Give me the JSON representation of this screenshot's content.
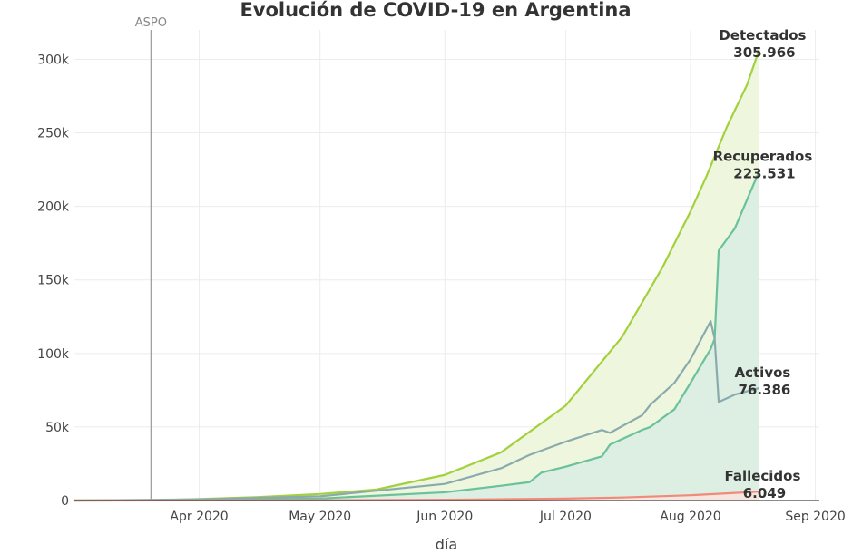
{
  "chart_data": {
    "type": "area",
    "title": "Evolución de COVID-19 en Argentina",
    "xlabel": "día",
    "ylabel": "",
    "x_domain": [
      "2020-03-01",
      "2020-09-02"
    ],
    "ylim": [
      0,
      320000
    ],
    "x_ticks": [
      {
        "date": "2020-04-01",
        "label": "Apr 2020"
      },
      {
        "date": "2020-05-01",
        "label": "May 2020"
      },
      {
        "date": "2020-06-01",
        "label": "Jun 2020"
      },
      {
        "date": "2020-07-01",
        "label": "Jul 2020"
      },
      {
        "date": "2020-08-01",
        "label": "Aug 2020"
      },
      {
        "date": "2020-09-01",
        "label": "Sep 2020"
      }
    ],
    "y_ticks": [
      {
        "value": 0,
        "label": "0"
      },
      {
        "value": 50000,
        "label": "50k"
      },
      {
        "value": 100000,
        "label": "100k"
      },
      {
        "value": 150000,
        "label": "150k"
      },
      {
        "value": 200000,
        "label": "200k"
      },
      {
        "value": 250000,
        "label": "250k"
      },
      {
        "value": 300000,
        "label": "300k"
      }
    ],
    "grid": true,
    "vertical_line": {
      "date": "2020-03-20",
      "label": "ASPO"
    },
    "series": [
      {
        "name": "Detectados",
        "end_label": "305.966",
        "color": "#a3d13e",
        "fill": "#eef6dd",
        "points": [
          [
            "2020-03-01",
            0
          ],
          [
            "2020-03-20",
            128
          ],
          [
            "2020-04-01",
            1054
          ],
          [
            "2020-04-15",
            2272
          ],
          [
            "2020-05-01",
            4428
          ],
          [
            "2020-05-15",
            7479
          ],
          [
            "2020-06-01",
            17415
          ],
          [
            "2020-06-15",
            32785
          ],
          [
            "2020-07-01",
            64530
          ],
          [
            "2020-07-15",
            111160
          ],
          [
            "2020-07-25",
            158334
          ],
          [
            "2020-08-01",
            196543
          ],
          [
            "2020-08-05",
            220682
          ],
          [
            "2020-08-10",
            253868
          ],
          [
            "2020-08-15",
            282437
          ],
          [
            "2020-08-18",
            305966
          ]
        ]
      },
      {
        "name": "Recuperados",
        "end_label": "223.531",
        "color": "#6ac19a",
        "fill": "#dcefe2",
        "points": [
          [
            "2020-03-01",
            0
          ],
          [
            "2020-04-01",
            240
          ],
          [
            "2020-05-01",
            1356
          ],
          [
            "2020-06-01",
            5598
          ],
          [
            "2020-06-15",
            10052
          ],
          [
            "2020-06-22",
            12500
          ],
          [
            "2020-06-25",
            19000
          ],
          [
            "2020-07-01",
            23000
          ],
          [
            "2020-07-10",
            30000
          ],
          [
            "2020-07-12",
            38000
          ],
          [
            "2020-07-20",
            48000
          ],
          [
            "2020-07-22",
            50000
          ],
          [
            "2020-07-28",
            62000
          ],
          [
            "2020-08-01",
            80000
          ],
          [
            "2020-08-06",
            103000
          ],
          [
            "2020-08-07",
            110000
          ],
          [
            "2020-08-08",
            170000
          ],
          [
            "2020-08-12",
            185000
          ],
          [
            "2020-08-18",
            223531
          ]
        ]
      },
      {
        "name": "Activos",
        "end_label": "76.386",
        "color": "#8aabae",
        "fill": "none",
        "points": [
          [
            "2020-03-01",
            0
          ],
          [
            "2020-04-01",
            770
          ],
          [
            "2020-05-01",
            2855
          ],
          [
            "2020-06-01",
            11281
          ],
          [
            "2020-06-15",
            22000
          ],
          [
            "2020-06-22",
            31000
          ],
          [
            "2020-06-25",
            34000
          ],
          [
            "2020-07-01",
            40000
          ],
          [
            "2020-07-10",
            48000
          ],
          [
            "2020-07-12",
            46000
          ],
          [
            "2020-07-20",
            58000
          ],
          [
            "2020-07-22",
            65000
          ],
          [
            "2020-07-28",
            80000
          ],
          [
            "2020-08-01",
            96000
          ],
          [
            "2020-08-06",
            122000
          ],
          [
            "2020-08-07",
            110000
          ],
          [
            "2020-08-08",
            67000
          ],
          [
            "2020-08-12",
            72000
          ],
          [
            "2020-08-18",
            76386
          ]
        ]
      },
      {
        "name": "Fallecidos",
        "end_label": "6.049",
        "color": "#f08a7a",
        "fill": "#f6e6e0",
        "points": [
          [
            "2020-03-01",
            0
          ],
          [
            "2020-04-01",
            27
          ],
          [
            "2020-05-01",
            217
          ],
          [
            "2020-06-01",
            536
          ],
          [
            "2020-07-01",
            1307
          ],
          [
            "2020-07-15",
            2050
          ],
          [
            "2020-08-01",
            3596
          ],
          [
            "2020-08-10",
            4863
          ],
          [
            "2020-08-18",
            6049
          ]
        ]
      }
    ]
  }
}
